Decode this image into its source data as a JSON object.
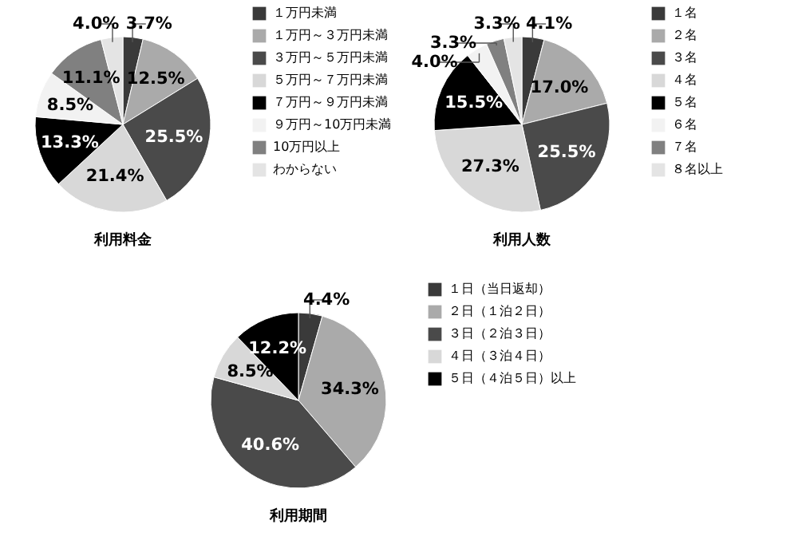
{
  "chart_data": [
    {
      "type": "pie",
      "title": "利用料金",
      "categories": [
        "１万円未満",
        "１万円～３万円未満",
        "３万円～５万円未満",
        "５万円～７万円未満",
        "７万円～９万円未満",
        "９万円～10万円未満",
        "10万円以上",
        "わからない"
      ],
      "values": [
        3.7,
        12.5,
        25.5,
        21.4,
        13.3,
        8.5,
        11.1,
        4.0
      ],
      "value_labels": [
        "3.7%",
        "12.5%",
        "25.5%",
        "21.4%",
        "13.3%",
        "8.5%",
        "11.1%",
        "4.0%"
      ],
      "colors": [
        "#3a3a3a",
        "#aaaaaa",
        "#4a4a4a",
        "#d8d8d8",
        "#000000",
        "#f2f2f2",
        "#808080",
        "#e4e4e4"
      ],
      "legend": "right"
    },
    {
      "type": "pie",
      "title": "利用人数",
      "categories": [
        "１名",
        "２名",
        "３名",
        "４名",
        "５名",
        "６名",
        "７名",
        "８名以上"
      ],
      "values": [
        4.1,
        17.0,
        25.5,
        27.3,
        15.5,
        4.0,
        3.3,
        3.3
      ],
      "value_labels": [
        "4.1%",
        "17.0%",
        "25.5%",
        "27.3%",
        "15.5%",
        "4.0%",
        "3.3%",
        "3.3%"
      ],
      "colors": [
        "#3a3a3a",
        "#aaaaaa",
        "#4a4a4a",
        "#d8d8d8",
        "#000000",
        "#f2f2f2",
        "#808080",
        "#e4e4e4"
      ],
      "legend": "right"
    },
    {
      "type": "pie",
      "title": "利用期間",
      "categories": [
        "１日（当日返却）",
        "２日（１泊２日）",
        "３日（２泊３日）",
        "４日（３泊４日）",
        "５日（４泊５日）以上"
      ],
      "values": [
        4.4,
        34.3,
        40.6,
        8.5,
        12.2
      ],
      "value_labels": [
        "4.4%",
        "34.3%",
        "40.6%",
        "8.5%",
        "12.2%"
      ],
      "colors": [
        "#3a3a3a",
        "#aaaaaa",
        "#4a4a4a",
        "#d8d8d8",
        "#000000"
      ],
      "legend": "right"
    }
  ]
}
